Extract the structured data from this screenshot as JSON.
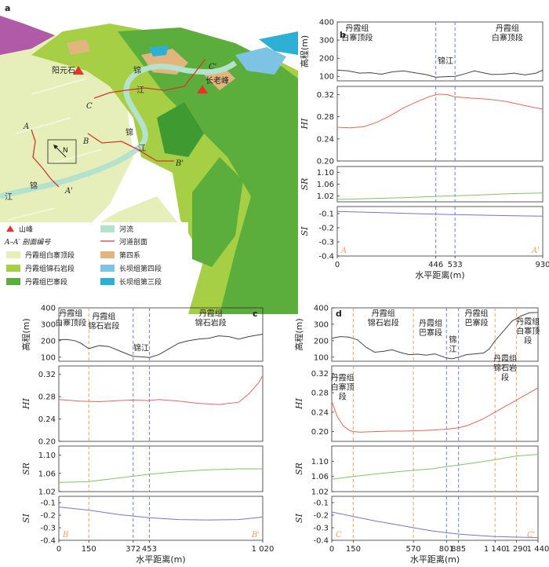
{
  "map": {
    "panel_letter": "a",
    "peaks": [
      "阳元石",
      "长老峰"
    ],
    "river_chars": [
      "锦",
      "江",
      "锦",
      "江",
      "锦",
      "江"
    ],
    "section_labels": [
      "A",
      "A'",
      "B",
      "B'",
      "C",
      "C'"
    ],
    "north": "N",
    "legend": [
      {
        "label": "山峰",
        "kind": "triangle",
        "color": "#e8312a"
      },
      {
        "label": "河流",
        "kind": "swatch",
        "color": "#b5e2cc"
      },
      {
        "label": "A–A′ 剖面编号",
        "kind": "text"
      },
      {
        "label": "河道剖面",
        "kind": "line",
        "color": "#d4372c"
      },
      {
        "label": "丹霞组白寨顶段",
        "kind": "swatch",
        "color": "#e6efb9"
      },
      {
        "label": "第四系",
        "kind": "swatch",
        "color": "#e3b57e"
      },
      {
        "label": "丹霞组锦石岩段",
        "kind": "swatch",
        "color": "#a7cf45"
      },
      {
        "label": "长坝组第四段",
        "kind": "swatch",
        "color": "#7ec3e3"
      },
      {
        "label": "丹霞组巴寨段",
        "kind": "swatch",
        "color": "#5cae3c"
      },
      {
        "label": "长坝组第三段",
        "kind": "swatch",
        "color": "#2eb0d6"
      }
    ]
  },
  "chart_data": [
    {
      "panel": "b",
      "type": "line",
      "xlabel": "水平距离(m)",
      "xticks": [
        "0",
        "446",
        "533",
        "930"
      ],
      "xtick_values": [
        0,
        446,
        533,
        930
      ],
      "xlim": [
        0,
        930
      ],
      "section_start": "A",
      "section_end": "A'",
      "dashed_lines": [
        {
          "x": 446,
          "color": "#6f7fd6"
        },
        {
          "x": 533,
          "color": "#6f7fd6"
        }
      ],
      "annotations": [
        {
          "text": [
            "丹霞组",
            "白寨顶段"
          ],
          "x": 90,
          "track": 0,
          "y": 350
        },
        {
          "text": [
            "锦江"
          ],
          "x": 490,
          "track": 0,
          "y": 170
        },
        {
          "text": [
            "丹霞组",
            "白寨顶段"
          ],
          "x": 770,
          "track": 0,
          "y": 350
        }
      ],
      "tracks": [
        {
          "ylabel": "高程(m)",
          "yticks": [
            100,
            200,
            300,
            400
          ],
          "ylim": [
            75,
            400
          ],
          "color": "#444444",
          "serif": false,
          "x": [
            0,
            50,
            100,
            150,
            200,
            250,
            300,
            350,
            400,
            446,
            480,
            533,
            580,
            620,
            660,
            700,
            750,
            800,
            850,
            900,
            930
          ],
          "y": [
            135,
            130,
            118,
            120,
            112,
            125,
            130,
            120,
            110,
            95,
            98,
            100,
            115,
            130,
            120,
            110,
            112,
            118,
            108,
            118,
            135
          ]
        },
        {
          "ylabel": "HI",
          "yticks": [
            0.2,
            0.24,
            0.28,
            0.32
          ],
          "ylim": [
            0.2,
            0.335
          ],
          "color": "#e4675a",
          "serif": true,
          "x": [
            0,
            60,
            120,
            180,
            240,
            300,
            360,
            420,
            460,
            500,
            533,
            600,
            680,
            760,
            840,
            900,
            930
          ],
          "y": [
            0.261,
            0.26,
            0.262,
            0.27,
            0.282,
            0.296,
            0.307,
            0.317,
            0.321,
            0.32,
            0.316,
            0.314,
            0.312,
            0.308,
            0.301,
            0.296,
            0.294
          ]
        },
        {
          "ylabel": "SR",
          "yticks": [
            1.02,
            1.06,
            1.1
          ],
          "ylim": [
            1.0,
            1.12
          ],
          "color": "#86c06a",
          "serif": true,
          "x": [
            0,
            100,
            200,
            300,
            400,
            500,
            600,
            700,
            800,
            930
          ],
          "y": [
            1.008,
            1.01,
            1.012,
            1.014,
            1.017,
            1.02,
            1.022,
            1.025,
            1.028,
            1.03
          ]
        },
        {
          "ylabel": "SI",
          "yticks": [
            -0.1,
            -0.2,
            -0.3,
            -0.4
          ],
          "ylim": [
            -0.4,
            -0.05
          ],
          "color": "#7a74c6",
          "serif": true,
          "x": [
            0,
            100,
            200,
            300,
            400,
            500,
            600,
            700,
            800,
            930
          ],
          "y": [
            -0.085,
            -0.089,
            -0.093,
            -0.098,
            -0.102,
            -0.106,
            -0.109,
            -0.112,
            -0.115,
            -0.118
          ]
        }
      ]
    },
    {
      "panel": "c",
      "type": "line",
      "xlabel": "水平距离(m)",
      "xticks": [
        "0",
        "150",
        "372",
        "453",
        "1 020"
      ],
      "xtick_values": [
        0,
        150,
        372,
        453,
        1020
      ],
      "xlim": [
        0,
        1020
      ],
      "section_start": "B",
      "section_end": "B'",
      "dashed_lines": [
        {
          "x": 150,
          "color": "#f0a060"
        },
        {
          "x": 372,
          "color": "#6f7fd6"
        },
        {
          "x": 453,
          "color": "#6f7fd6"
        }
      ],
      "annotations": [
        {
          "text": [
            "丹霞组",
            "白寨顶段"
          ],
          "x": 60,
          "track": 0,
          "y": 350
        },
        {
          "text": [
            "丹霞组",
            "锦石岩段"
          ],
          "x": 225,
          "track": 0,
          "y": 330
        },
        {
          "text": [
            "锦江"
          ],
          "x": 412,
          "track": 0,
          "y": 140
        },
        {
          "text": [
            "丹霞组",
            "锦石岩段"
          ],
          "x": 760,
          "track": 0,
          "y": 350
        }
      ],
      "tracks": [
        {
          "ylabel": "高程(m)",
          "yticks": [
            100,
            200,
            300,
            400
          ],
          "ylim": [
            75,
            400
          ],
          "color": "#444444",
          "serif": false,
          "x": [
            0,
            40,
            80,
            110,
            150,
            200,
            250,
            300,
            340,
            372,
            400,
            453,
            500,
            550,
            600,
            650,
            700,
            750,
            800,
            850,
            900,
            950,
            1020
          ],
          "y": [
            205,
            208,
            200,
            185,
            152,
            170,
            165,
            140,
            120,
            105,
            103,
            98,
            115,
            150,
            185,
            200,
            210,
            215,
            230,
            225,
            210,
            225,
            240
          ]
        },
        {
          "ylabel": "HI",
          "yticks": [
            0.2,
            0.24,
            0.28,
            0.32
          ],
          "ylim": [
            0.2,
            0.335
          ],
          "color": "#e4675a",
          "serif": true,
          "x": [
            0,
            100,
            200,
            300,
            372,
            453,
            500,
            600,
            700,
            800,
            900,
            950,
            1000,
            1020
          ],
          "y": [
            0.275,
            0.272,
            0.271,
            0.273,
            0.274,
            0.273,
            0.275,
            0.272,
            0.268,
            0.266,
            0.27,
            0.285,
            0.305,
            0.318
          ]
        },
        {
          "ylabel": "SR",
          "yticks": [
            1.02,
            1.06,
            1.1
          ],
          "ylim": [
            1.02,
            1.12
          ],
          "color": "#86c06a",
          "serif": true,
          "x": [
            0,
            150,
            300,
            450,
            600,
            750,
            900,
            1020
          ],
          "y": [
            1.04,
            1.042,
            1.05,
            1.058,
            1.064,
            1.068,
            1.07,
            1.07
          ]
        },
        {
          "ylabel": "SI",
          "yticks": [
            -0.1,
            -0.2,
            -0.3,
            -0.4
          ],
          "ylim": [
            -0.4,
            -0.05
          ],
          "color": "#7a74c6",
          "serif": true,
          "x": [
            0,
            150,
            300,
            453,
            600,
            750,
            900,
            1020
          ],
          "y": [
            -0.135,
            -0.16,
            -0.195,
            -0.22,
            -0.235,
            -0.238,
            -0.235,
            -0.215
          ]
        }
      ]
    },
    {
      "panel": "d",
      "type": "line",
      "xlabel": "水平距离(m)",
      "xticks": [
        "0",
        "150",
        "570",
        "801",
        "885",
        "1 140",
        "1 290",
        "1 440"
      ],
      "xtick_values": [
        0,
        150,
        570,
        801,
        885,
        1140,
        1290,
        1440
      ],
      "xlim": [
        0,
        1440
      ],
      "section_start": "C",
      "section_end": "C'",
      "dashed_lines": [
        {
          "x": 150,
          "color": "#f0a060"
        },
        {
          "x": 570,
          "color": "#f0a060"
        },
        {
          "x": 801,
          "color": "#6f7fd6"
        },
        {
          "x": 885,
          "color": "#6f7fd6"
        },
        {
          "x": 1140,
          "color": "#f0a060"
        },
        {
          "x": 1290,
          "color": "#f0a060"
        }
      ],
      "annotations": [
        {
          "text": [
            "丹霞组",
            "锦石岩段"
          ],
          "x": 360,
          "track": 0,
          "y": 350
        },
        {
          "text": [
            "丹霞组",
            "巴寨段"
          ],
          "x": 690,
          "track": 0,
          "y": 290
        },
        {
          "text": [
            "锦",
            "江"
          ],
          "x": 845,
          "track": 0,
          "y": 190
        },
        {
          "text": [
            "丹霞组",
            "巴寨段"
          ],
          "x": 1010,
          "track": 0,
          "y": 350
        },
        {
          "text": [
            "丹霞组",
            "白寨顶",
            "段"
          ],
          "x": 1370,
          "track": 0,
          "y": 300
        },
        {
          "text": [
            "丹霞组",
            "白寨顶",
            "段"
          ],
          "x": 75,
          "track": 1,
          "y": 0.305
        },
        {
          "text": [
            "丹霞组",
            "锦石岩",
            "段"
          ],
          "x": 1210,
          "track": 1,
          "y": 0.345
        }
      ],
      "tracks": [
        {
          "ylabel": "高程(m)",
          "yticks": [
            100,
            200,
            300,
            400
          ],
          "ylim": [
            75,
            400
          ],
          "color": "#444444",
          "serif": false,
          "x": [
            0,
            60,
            120,
            180,
            240,
            300,
            360,
            420,
            480,
            540,
            600,
            660,
            720,
            801,
            840,
            885,
            940,
            1000,
            1060,
            1100,
            1140,
            1200,
            1260,
            1320,
            1380,
            1440
          ],
          "y": [
            215,
            225,
            222,
            205,
            160,
            130,
            135,
            145,
            128,
            115,
            118,
            112,
            120,
            95,
            90,
            100,
            115,
            120,
            125,
            150,
            200,
            260,
            320,
            350,
            370,
            372
          ]
        },
        {
          "ylabel": "HI",
          "yticks": [
            0.2,
            0.24,
            0.28,
            0.32
          ],
          "ylim": [
            0.18,
            0.335
          ],
          "color": "#e4675a",
          "serif": true,
          "x": [
            0,
            40,
            80,
            120,
            150,
            200,
            300,
            400,
            500,
            600,
            700,
            801,
            885,
            950,
            1050,
            1140,
            1200,
            1290,
            1380,
            1440
          ],
          "y": [
            0.262,
            0.23,
            0.212,
            0.203,
            0.2,
            0.199,
            0.2,
            0.201,
            0.201,
            0.202,
            0.203,
            0.205,
            0.208,
            0.213,
            0.225,
            0.24,
            0.25,
            0.265,
            0.28,
            0.29
          ]
        },
        {
          "ylabel": "SR",
          "yticks": [
            1.02,
            1.06,
            1.1
          ],
          "ylim": [
            1.02,
            1.14
          ],
          "color": "#86c06a",
          "serif": true,
          "x": [
            0,
            150,
            300,
            450,
            570,
            700,
            801,
            885,
            1000,
            1140,
            1290,
            1440
          ],
          "y": [
            1.053,
            1.06,
            1.066,
            1.072,
            1.076,
            1.08,
            1.086,
            1.09,
            1.096,
            1.104,
            1.114,
            1.118
          ]
        },
        {
          "ylabel": "SI",
          "yticks": [
            -0.1,
            -0.2,
            -0.3,
            -0.4
          ],
          "ylim": [
            -0.4,
            -0.05
          ],
          "color": "#7a74c6",
          "serif": true,
          "x": [
            0,
            150,
            300,
            450,
            570,
            700,
            801,
            885,
            1000,
            1140,
            1290,
            1440
          ],
          "y": [
            -0.175,
            -0.21,
            -0.245,
            -0.275,
            -0.3,
            -0.325,
            -0.34,
            -0.35,
            -0.36,
            -0.37,
            -0.375,
            -0.378
          ]
        }
      ]
    }
  ]
}
